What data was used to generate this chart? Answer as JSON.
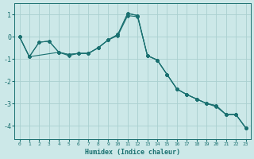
{
  "xlabel": "Humidex (Indice chaleur)",
  "xlim": [
    -0.5,
    23.5
  ],
  "ylim": [
    -4.6,
    1.5
  ],
  "yticks": [
    1,
    0,
    -1,
    -2,
    -3,
    -4
  ],
  "xticks": [
    0,
    1,
    2,
    3,
    4,
    5,
    6,
    7,
    8,
    9,
    10,
    11,
    12,
    13,
    14,
    15,
    16,
    17,
    18,
    19,
    20,
    21,
    22,
    23
  ],
  "background_color": "#cce8e8",
  "line_color": "#1a7070",
  "grid_color": "#aad0d0",
  "series1_x": [
    0,
    1,
    2,
    3,
    4,
    5,
    6,
    7,
    8,
    9,
    10,
    11,
    12,
    13,
    14,
    15,
    16,
    17,
    18,
    19,
    20,
    21,
    22,
    23
  ],
  "series1_y": [
    0.0,
    -0.9,
    -0.25,
    -0.2,
    -0.7,
    -0.8,
    -0.75,
    -0.75,
    -0.5,
    -0.15,
    0.1,
    1.05,
    0.95,
    -0.85,
    -1.05,
    -1.7,
    -2.35,
    -2.6,
    -2.8,
    -3.0,
    -3.1,
    -3.5,
    -3.5,
    -4.1
  ],
  "series2_x": [
    0,
    1,
    4,
    5,
    6,
    7,
    8,
    9,
    10,
    11,
    12,
    13,
    14,
    15,
    16,
    17,
    18,
    19,
    20,
    21,
    22,
    23
  ],
  "series2_y": [
    0.0,
    -0.9,
    -0.7,
    -0.85,
    -0.75,
    -0.75,
    -0.5,
    -0.15,
    0.1,
    1.05,
    0.95,
    -0.85,
    -1.05,
    -1.7,
    -2.35,
    -2.6,
    -2.8,
    -3.0,
    -3.1,
    -3.5,
    -3.5,
    -4.1
  ],
  "series3_x": [
    0,
    1,
    2,
    3,
    4,
    5,
    6,
    7,
    8,
    9,
    10,
    11,
    12,
    13,
    14,
    15,
    16,
    17,
    18,
    19,
    20,
    21,
    22,
    23
  ],
  "series3_y": [
    0.0,
    -0.9,
    -0.25,
    -0.2,
    -0.7,
    -0.8,
    -0.75,
    -0.75,
    -0.5,
    -0.15,
    0.05,
    0.95,
    0.9,
    -0.85,
    -1.05,
    -1.7,
    -2.35,
    -2.6,
    -2.8,
    -3.0,
    -3.15,
    -3.5,
    -3.5,
    -4.1
  ]
}
